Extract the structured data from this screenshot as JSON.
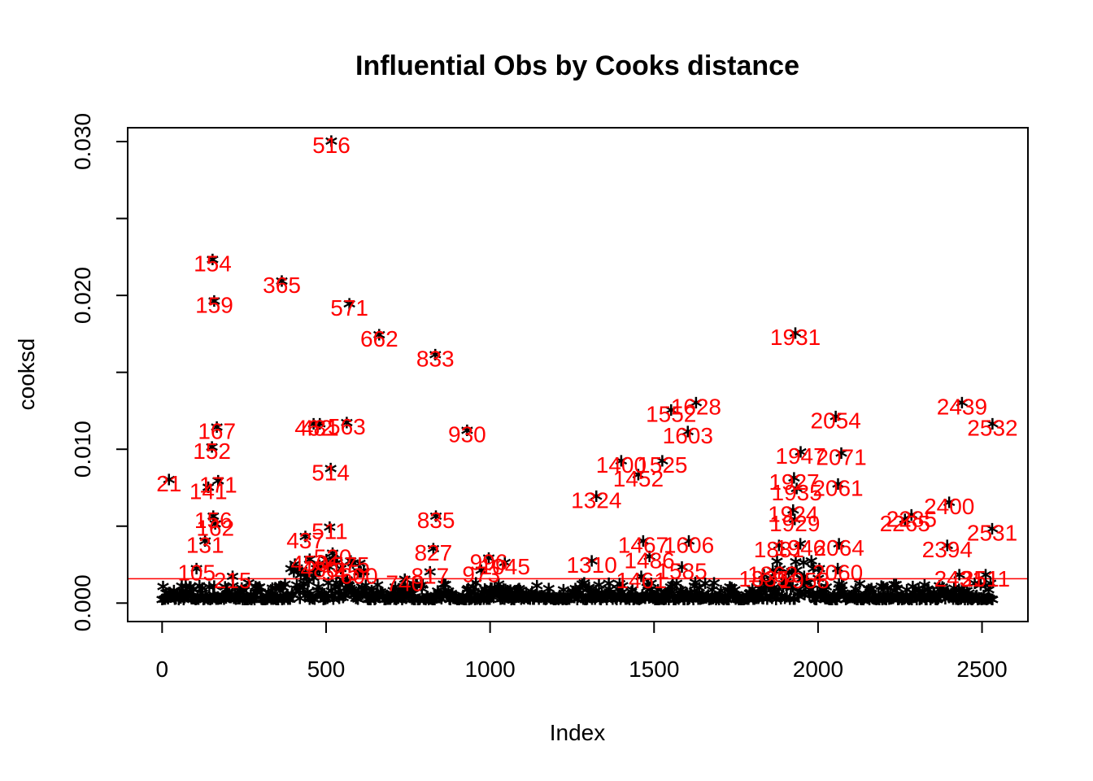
{
  "chart_data": {
    "type": "scatter",
    "title": "Influential Obs by Cooks distance",
    "xlabel": "Index",
    "ylabel": "cooksd",
    "xlim": [
      -105,
      2640
    ],
    "ylim": [
      -0.0012,
      0.0309
    ],
    "x_ticks": [
      0,
      500,
      1000,
      1500,
      2000,
      2500
    ],
    "x_tick_labels": [
      "0",
      "500",
      "1000",
      "1500",
      "2000",
      "2500"
    ],
    "y_ticks": [
      0.0,
      0.005,
      0.01,
      0.015,
      0.02,
      0.025,
      0.03
    ],
    "y_tick_labels": [
      "0.000",
      "",
      "0.010",
      "",
      "0.020",
      "",
      "0.030"
    ],
    "threshold": 0.00158,
    "colors": {
      "points": "#000000",
      "labels": "#ff0000",
      "threshold": "#ff0000",
      "frame": "#000000"
    },
    "point_symbol": "*",
    "points": [
      {
        "x": 516,
        "y": 0.0298,
        "label": "516"
      },
      {
        "x": 154,
        "y": 0.0221,
        "label": "154"
      },
      {
        "x": 365,
        "y": 0.0207,
        "label": "365"
      },
      {
        "x": 159,
        "y": 0.0194,
        "label": "159"
      },
      {
        "x": 571,
        "y": 0.0192,
        "label": "571"
      },
      {
        "x": 662,
        "y": 0.0172,
        "label": "662"
      },
      {
        "x": 833,
        "y": 0.0159,
        "label": "833"
      },
      {
        "x": 1931,
        "y": 0.0173,
        "label": "1931"
      },
      {
        "x": 1552,
        "y": 0.0123,
        "label": "1552"
      },
      {
        "x": 1628,
        "y": 0.0128,
        "label": "1628"
      },
      {
        "x": 1603,
        "y": 0.0109,
        "label": "1603"
      },
      {
        "x": 2054,
        "y": 0.0119,
        "label": "2054"
      },
      {
        "x": 2439,
        "y": 0.0128,
        "label": "2439"
      },
      {
        "x": 2532,
        "y": 0.0114,
        "label": "2532"
      },
      {
        "x": 167,
        "y": 0.0112,
        "label": "167"
      },
      {
        "x": 152,
        "y": 0.0099,
        "label": "152"
      },
      {
        "x": 462,
        "y": 0.0114,
        "label": "462"
      },
      {
        "x": 481,
        "y": 0.0114,
        "label": "481"
      },
      {
        "x": 563,
        "y": 0.0115,
        "label": "563"
      },
      {
        "x": 930,
        "y": 0.011,
        "label": "930"
      },
      {
        "x": 1400,
        "y": 0.009,
        "label": "1400"
      },
      {
        "x": 1525,
        "y": 0.009,
        "label": "1525"
      },
      {
        "x": 1452,
        "y": 0.0081,
        "label": "1452"
      },
      {
        "x": 1947,
        "y": 0.0096,
        "label": "1947"
      },
      {
        "x": 2071,
        "y": 0.0095,
        "label": "2071"
      },
      {
        "x": 21,
        "y": 0.0078,
        "label": "21"
      },
      {
        "x": 171,
        "y": 0.0077,
        "label": "171"
      },
      {
        "x": 141,
        "y": 0.0073,
        "label": "141"
      },
      {
        "x": 514,
        "y": 0.0085,
        "label": "514"
      },
      {
        "x": 1324,
        "y": 0.0067,
        "label": "1324"
      },
      {
        "x": 1927,
        "y": 0.0079,
        "label": "1927"
      },
      {
        "x": 2061,
        "y": 0.0075,
        "label": "2061"
      },
      {
        "x": 1935,
        "y": 0.0072,
        "label": "1935"
      },
      {
        "x": 156,
        "y": 0.0054,
        "label": "156"
      },
      {
        "x": 162,
        "y": 0.0049,
        "label": "162"
      },
      {
        "x": 835,
        "y": 0.0054,
        "label": "835"
      },
      {
        "x": 511,
        "y": 0.0047,
        "label": "511"
      },
      {
        "x": 1924,
        "y": 0.0058,
        "label": "1924"
      },
      {
        "x": 1929,
        "y": 0.0052,
        "label": "1929"
      },
      {
        "x": 2400,
        "y": 0.0063,
        "label": "2400"
      },
      {
        "x": 2265,
        "y": 0.0052,
        "label": "2265"
      },
      {
        "x": 2285,
        "y": 0.0055,
        "label": "2285"
      },
      {
        "x": 2531,
        "y": 0.0046,
        "label": "2531"
      },
      {
        "x": 131,
        "y": 0.0038,
        "label": "131"
      },
      {
        "x": 437,
        "y": 0.0041,
        "label": "437"
      },
      {
        "x": 827,
        "y": 0.0033,
        "label": "827"
      },
      {
        "x": 1467,
        "y": 0.0038,
        "label": "1467"
      },
      {
        "x": 1606,
        "y": 0.0038,
        "label": "1606"
      },
      {
        "x": 1881,
        "y": 0.0035,
        "label": "1881"
      },
      {
        "x": 1946,
        "y": 0.0036,
        "label": "1946"
      },
      {
        "x": 2064,
        "y": 0.0036,
        "label": "2064"
      },
      {
        "x": 2394,
        "y": 0.0035,
        "label": "2394"
      },
      {
        "x": 996,
        "y": 0.0027,
        "label": "996"
      },
      {
        "x": 1045,
        "y": 0.0024,
        "label": "1045"
      },
      {
        "x": 1310,
        "y": 0.0025,
        "label": "1310"
      },
      {
        "x": 1486,
        "y": 0.0028,
        "label": "1486"
      },
      {
        "x": 1585,
        "y": 0.0021,
        "label": "1585"
      },
      {
        "x": 1862,
        "y": 0.0019,
        "label": "1862"
      },
      {
        "x": 2060,
        "y": 0.002,
        "label": "2060"
      },
      {
        "x": 2431,
        "y": 0.0016,
        "label": "2431"
      },
      {
        "x": 2511,
        "y": 0.0016,
        "label": "2511"
      },
      {
        "x": 105,
        "y": 0.002,
        "label": "105"
      },
      {
        "x": 215,
        "y": 0.0015,
        "label": "215"
      },
      {
        "x": 740,
        "y": 0.0013,
        "label": "740"
      },
      {
        "x": 817,
        "y": 0.0018,
        "label": "817"
      },
      {
        "x": 973,
        "y": 0.0019,
        "label": "973"
      },
      {
        "x": 1461,
        "y": 0.0015,
        "label": "1461"
      },
      {
        "x": 1835,
        "y": 0.0016,
        "label": "1835"
      },
      {
        "x": 1958,
        "y": 0.0015,
        "label": "1958"
      },
      {
        "x": 450,
        "y": 0.0026,
        "label": "450"
      },
      {
        "x": 480,
        "y": 0.0022,
        "label": "480"
      },
      {
        "x": 520,
        "y": 0.003,
        "label": "520"
      },
      {
        "x": 545,
        "y": 0.002,
        "label": "545"
      },
      {
        "x": 575,
        "y": 0.0025,
        "label": "575"
      },
      {
        "x": 600,
        "y": 0.0018,
        "label": "600"
      }
    ]
  }
}
